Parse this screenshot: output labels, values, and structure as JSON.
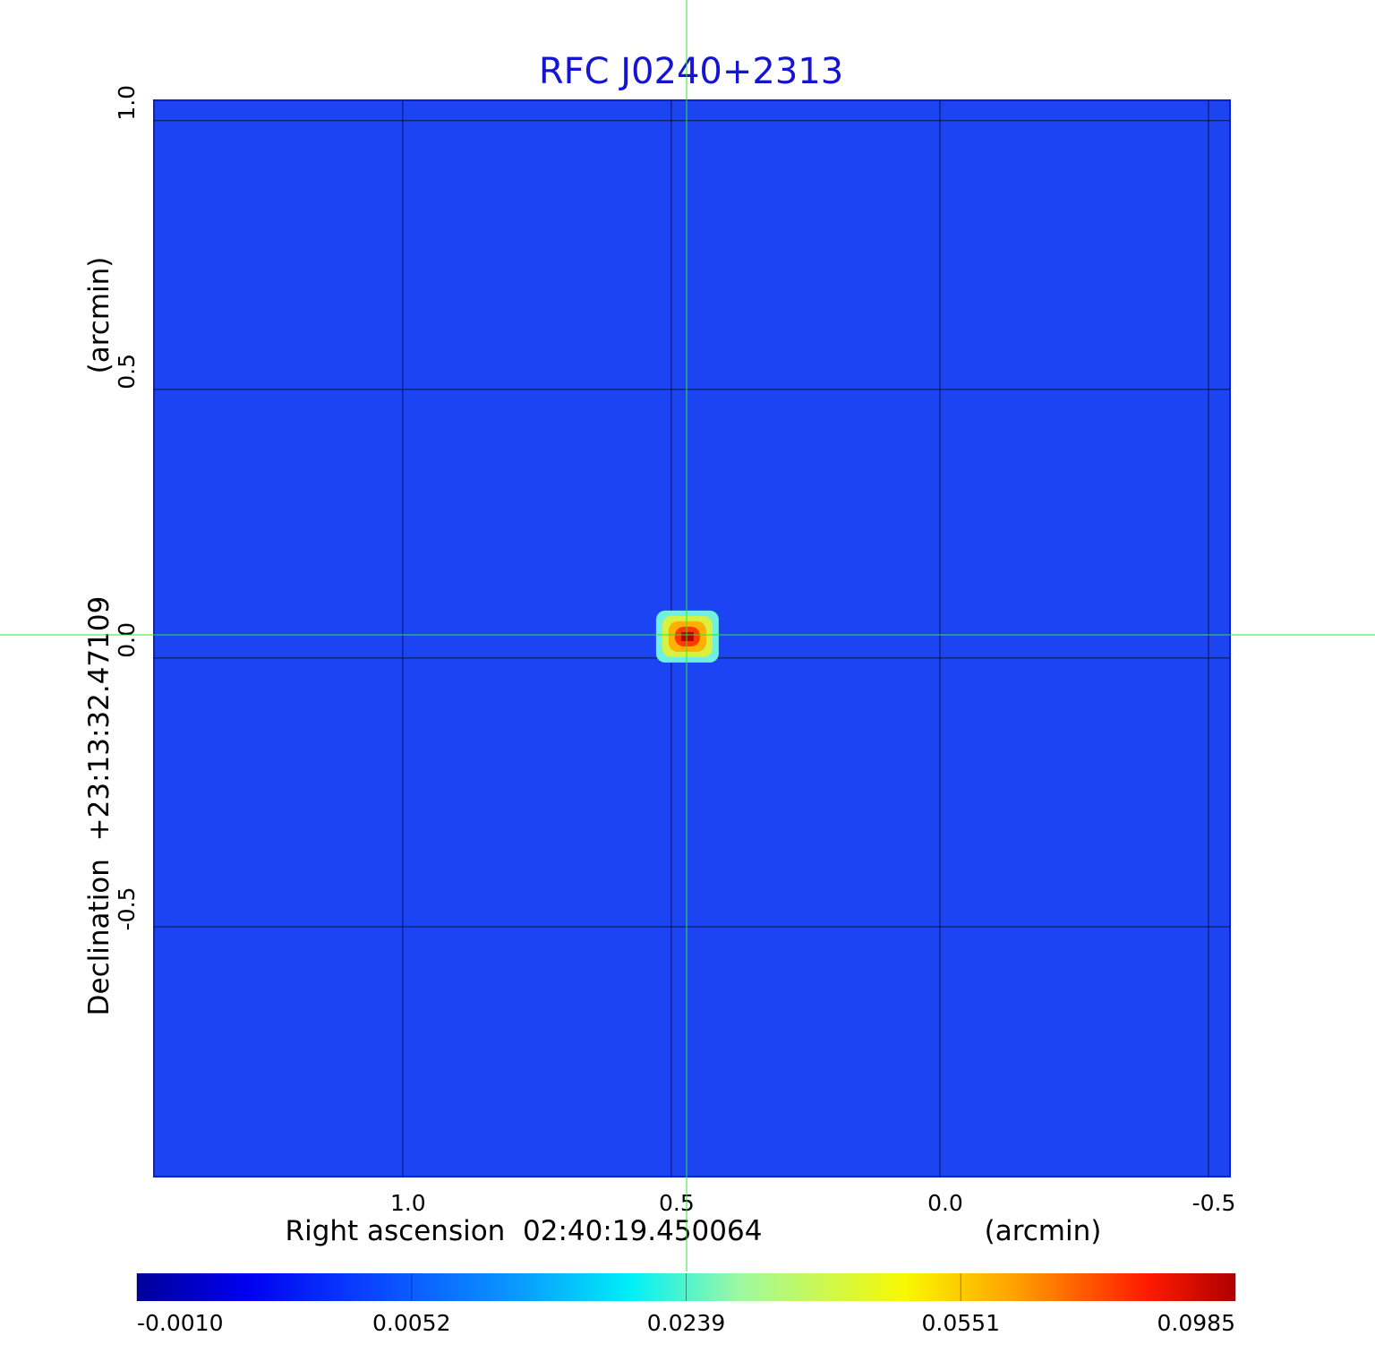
{
  "chart_data": {
    "type": "image",
    "title": "RFC J0240+2313",
    "x_label": "Right ascension  02:40:19.450064",
    "x_unit": "(arcmin)",
    "y_label": "Declination  +23:13:32.47109",
    "y_unit": "(arcmin)",
    "xlim": [
      1.463,
      -0.54
    ],
    "ylim": [
      -0.965,
      1.038
    ],
    "xticks": [
      {
        "value": 1,
        "label": "1.0"
      },
      0.5,
      {
        "value": 0,
        "label": "0.0"
      },
      -0.5
    ],
    "yticks": [
      {
        "value": 1,
        "label": "1.0"
      },
      0.5,
      {
        "value": 0,
        "label": "0.0"
      },
      -0.5
    ],
    "grid": true,
    "source": {
      "x": 0.47,
      "y": 0.04,
      "value": 0.0985
    },
    "colorbar": {
      "clim": [
        -0.001,
        0.0985
      ],
      "ticks": [
        {
          "value": -0.001,
          "label": "-0.0010"
        },
        0.0052,
        0.0239,
        0.0551,
        0.0985
      ]
    }
  }
}
